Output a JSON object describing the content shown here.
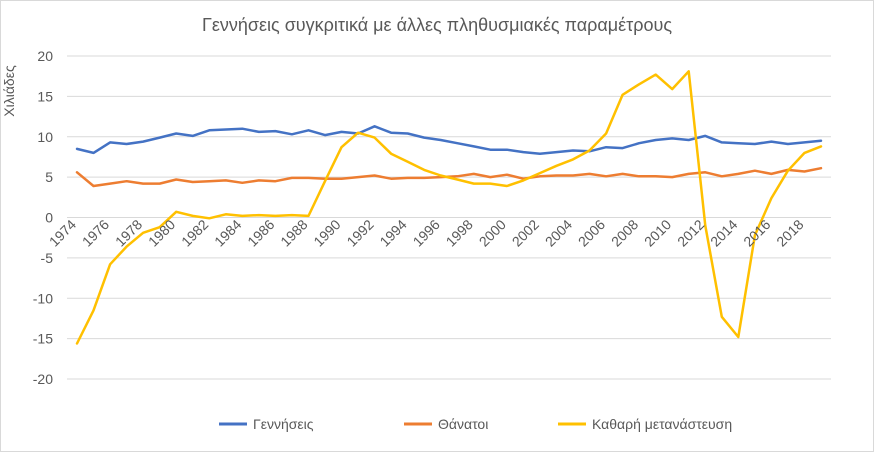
{
  "chart_data": {
    "type": "line",
    "title": "Γεννήσεις συγκριτικά με άλλες πληθυσμιακές παραμέτρους",
    "ylabel": "Χιλιάδες",
    "xlabel": "",
    "ylim": [
      -20,
      20
    ],
    "yticks": [
      -20,
      -15,
      -10,
      -5,
      0,
      5,
      10,
      15,
      20
    ],
    "xtick_labels": [
      "1974",
      "1976",
      "1978",
      "1980",
      "1982",
      "1984",
      "1986",
      "1988",
      "1990",
      "1992",
      "1994",
      "1996",
      "1998",
      "2000",
      "2002",
      "2004",
      "2006",
      "2008",
      "2010",
      "2012",
      "2014",
      "2016",
      "2018"
    ],
    "x": [
      1974,
      1975,
      1976,
      1977,
      1978,
      1979,
      1980,
      1981,
      1982,
      1983,
      1984,
      1985,
      1986,
      1987,
      1988,
      1989,
      1990,
      1991,
      1992,
      1993,
      1994,
      1995,
      1996,
      1997,
      1998,
      1999,
      2000,
      2001,
      2002,
      2003,
      2004,
      2005,
      2006,
      2007,
      2008,
      2009,
      2010,
      2011,
      2012,
      2013,
      2014,
      2015,
      2016,
      2017,
      2018,
      2019
    ],
    "grid": true,
    "legend": "bottom",
    "series": [
      {
        "name": "Γεννήσεις",
        "color": "#4472C4",
        "values": [
          8.5,
          8.0,
          9.3,
          9.1,
          9.4,
          9.9,
          10.4,
          10.1,
          10.8,
          10.9,
          11.0,
          10.6,
          10.7,
          10.3,
          10.8,
          10.2,
          10.6,
          10.4,
          11.3,
          10.5,
          10.4,
          9.9,
          9.6,
          9.2,
          8.8,
          8.4,
          8.4,
          8.1,
          7.9,
          8.1,
          8.3,
          8.2,
          8.7,
          8.6,
          9.2,
          9.6,
          9.8,
          9.6,
          10.1,
          9.3,
          9.2,
          9.1,
          9.4,
          9.1,
          9.3,
          9.5
        ]
      },
      {
        "name": "Θάνατοι",
        "color": "#ED7D31",
        "values": [
          5.6,
          3.9,
          4.2,
          4.5,
          4.2,
          4.2,
          4.7,
          4.4,
          4.5,
          4.6,
          4.3,
          4.6,
          4.5,
          4.9,
          4.9,
          4.8,
          4.8,
          5.0,
          5.2,
          4.8,
          4.9,
          4.9,
          5.0,
          5.1,
          5.4,
          5.0,
          5.3,
          4.8,
          5.1,
          5.2,
          5.2,
          5.4,
          5.1,
          5.4,
          5.1,
          5.1,
          5.0,
          5.4,
          5.6,
          5.1,
          5.4,
          5.8,
          5.4,
          5.9,
          5.7,
          6.1
        ]
      },
      {
        "name": "Καθαρή μετανάστευση",
        "color": "#FFC000",
        "values": [
          -15.6,
          -11.5,
          -5.8,
          -3.6,
          -1.9,
          -1.2,
          0.7,
          0.2,
          -0.1,
          0.4,
          0.2,
          0.3,
          0.2,
          0.3,
          0.2,
          4.5,
          8.7,
          10.5,
          9.9,
          7.9,
          6.9,
          5.9,
          5.2,
          4.7,
          4.2,
          4.2,
          3.9,
          4.6,
          5.5,
          6.4,
          7.2,
          8.3,
          10.4,
          15.2,
          16.5,
          17.7,
          15.9,
          18.1,
          -1.0,
          -12.3,
          -14.8,
          -2.2,
          2.4,
          5.8,
          8.0,
          8.8
        ]
      }
    ]
  }
}
